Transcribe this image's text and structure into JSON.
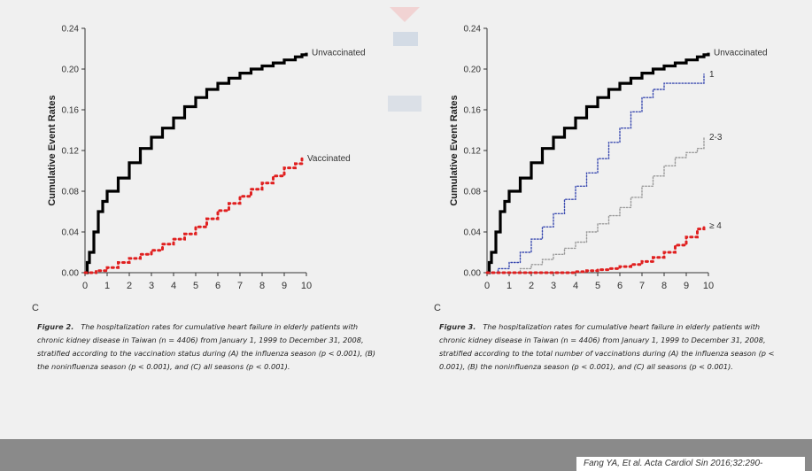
{
  "captions": {
    "left_label": "Figure 2.",
    "left_text": "The hospitalization rates for cumulative heart failure in elderly patients with chronic kidney disease in Taiwan (n = 4406) from January 1, 1999 to December 31, 2008, stratified according to the vaccination status during (A) the influenza season (p < 0.001), (B) the noninfluenza season (p < 0.001), and (C) all seasons (p < 0.001).",
    "right_label": "Figure 3.",
    "right_text": "The hospitalization rates for cumulative heart failure in elderly patients with chronic kidney disease in Taiwan (n = 4406) from January 1, 1999 to December 31, 2008, stratified according to the total number of vaccinations during (A) the influenza season (p < 0.001), (B) the noninfluenza season (p < 0.001), and (C) all seasons (p < 0.001)."
  },
  "panel_letters": {
    "left": "C",
    "right": "C"
  },
  "footer": {
    "citation": "Fang YA, Et al. Acta Cardiol Sin 2016;32:290-"
  },
  "colors": {
    "unvaccinated": "#000000",
    "vaccinated": "#e02020",
    "one": "#3a4ab0",
    "two_three": "#9a9a9a",
    "four_plus": "#e02020",
    "footer_bar": "#8a8a8a"
  },
  "chart_data": [
    {
      "type": "line",
      "title": "",
      "xlabel": "Follow-Up (years)",
      "ylabel": "Cumulative Event Rates",
      "xlim": [
        0,
        10
      ],
      "ylim": [
        0,
        0.24
      ],
      "x_ticks": [
        0,
        1,
        2,
        3,
        4,
        5,
        6,
        7,
        8,
        9,
        10
      ],
      "y_ticks": [
        "0.00",
        "0.04",
        "0.08",
        "0.12",
        "0.16",
        "0.20",
        "0.24"
      ],
      "legend_position": "right",
      "series": [
        {
          "name": "Unvaccinated",
          "style": "solid",
          "color": "#000000",
          "x": [
            0,
            0.1,
            0.2,
            0.4,
            0.6,
            0.8,
            1.0,
            1.5,
            2.0,
            2.5,
            3.0,
            3.5,
            4.0,
            4.5,
            5.0,
            5.5,
            6.0,
            6.5,
            7.0,
            7.5,
            8.0,
            8.5,
            9.0,
            9.5,
            9.8,
            10.0
          ],
          "y": [
            0,
            0.01,
            0.02,
            0.04,
            0.06,
            0.07,
            0.08,
            0.093,
            0.108,
            0.122,
            0.133,
            0.142,
            0.152,
            0.163,
            0.172,
            0.18,
            0.186,
            0.191,
            0.196,
            0.2,
            0.203,
            0.206,
            0.209,
            0.212,
            0.214,
            0.216
          ]
        },
        {
          "name": "Vaccinated",
          "style": "dotted",
          "color": "#e02020",
          "x": [
            0,
            0.5,
            1.0,
            1.5,
            2.0,
            2.5,
            3.0,
            3.5,
            4.0,
            4.5,
            5.0,
            5.5,
            6.0,
            6.5,
            7.0,
            7.5,
            8.0,
            8.5,
            9.0,
            9.5,
            9.8
          ],
          "y": [
            0,
            0.002,
            0.005,
            0.01,
            0.014,
            0.018,
            0.022,
            0.028,
            0.033,
            0.038,
            0.045,
            0.053,
            0.061,
            0.068,
            0.075,
            0.082,
            0.088,
            0.095,
            0.103,
            0.107,
            0.112
          ]
        }
      ]
    },
    {
      "type": "line",
      "title": "",
      "xlabel": "Follow-Up (years)",
      "ylabel": "Cumulative Event Rates",
      "xlim": [
        0,
        10
      ],
      "ylim": [
        0,
        0.24
      ],
      "x_ticks": [
        0,
        1,
        2,
        3,
        4,
        5,
        6,
        7,
        8,
        9,
        10
      ],
      "y_ticks": [
        "0.00",
        "0.04",
        "0.08",
        "0.12",
        "0.16",
        "0.20",
        "0.24"
      ],
      "legend_position": "right",
      "series": [
        {
          "name": "Unvaccinated",
          "style": "solid",
          "color": "#000000",
          "x": [
            0,
            0.1,
            0.2,
            0.4,
            0.6,
            0.8,
            1.0,
            1.5,
            2.0,
            2.5,
            3.0,
            3.5,
            4.0,
            4.5,
            5.0,
            5.5,
            6.0,
            6.5,
            7.0,
            7.5,
            8.0,
            8.5,
            9.0,
            9.5,
            9.8,
            10.0
          ],
          "y": [
            0,
            0.01,
            0.02,
            0.04,
            0.06,
            0.07,
            0.08,
            0.093,
            0.108,
            0.122,
            0.133,
            0.142,
            0.152,
            0.163,
            0.172,
            0.18,
            0.186,
            0.191,
            0.196,
            0.2,
            0.203,
            0.206,
            0.209,
            0.212,
            0.214,
            0.216
          ]
        },
        {
          "name": "1",
          "style": "dotted",
          "color": "#3a4ab0",
          "x": [
            0,
            0.5,
            1.0,
            1.5,
            2.0,
            2.5,
            3.0,
            3.5,
            4.0,
            4.5,
            5.0,
            5.5,
            6.0,
            6.5,
            7.0,
            7.5,
            8.0,
            9.0,
            9.8
          ],
          "y": [
            0,
            0.004,
            0.01,
            0.02,
            0.033,
            0.045,
            0.058,
            0.072,
            0.085,
            0.098,
            0.112,
            0.128,
            0.142,
            0.158,
            0.172,
            0.18,
            0.186,
            0.186,
            0.195
          ]
        },
        {
          "name": "2-3",
          "style": "dotted",
          "color": "#9a9a9a",
          "x": [
            0,
            1.0,
            1.5,
            2.0,
            2.5,
            3.0,
            3.5,
            4.0,
            4.5,
            5.0,
            5.5,
            6.0,
            6.5,
            7.0,
            7.5,
            8.0,
            8.5,
            9.0,
            9.5,
            9.8
          ],
          "y": [
            0,
            0,
            0.004,
            0.008,
            0.013,
            0.018,
            0.024,
            0.03,
            0.04,
            0.048,
            0.056,
            0.064,
            0.074,
            0.085,
            0.095,
            0.105,
            0.113,
            0.118,
            0.122,
            0.133
          ]
        },
        {
          "name": "≥ 4",
          "style": "dotted",
          "color": "#e02020",
          "x": [
            0,
            3.5,
            4.0,
            4.5,
            5.0,
            5.5,
            6.0,
            6.5,
            7.0,
            7.5,
            8.0,
            8.5,
            9.0,
            9.5,
            9.8
          ],
          "y": [
            0,
            0,
            0.001,
            0.002,
            0.003,
            0.004,
            0.006,
            0.008,
            0.011,
            0.015,
            0.02,
            0.027,
            0.035,
            0.043,
            0.046
          ]
        }
      ]
    }
  ]
}
